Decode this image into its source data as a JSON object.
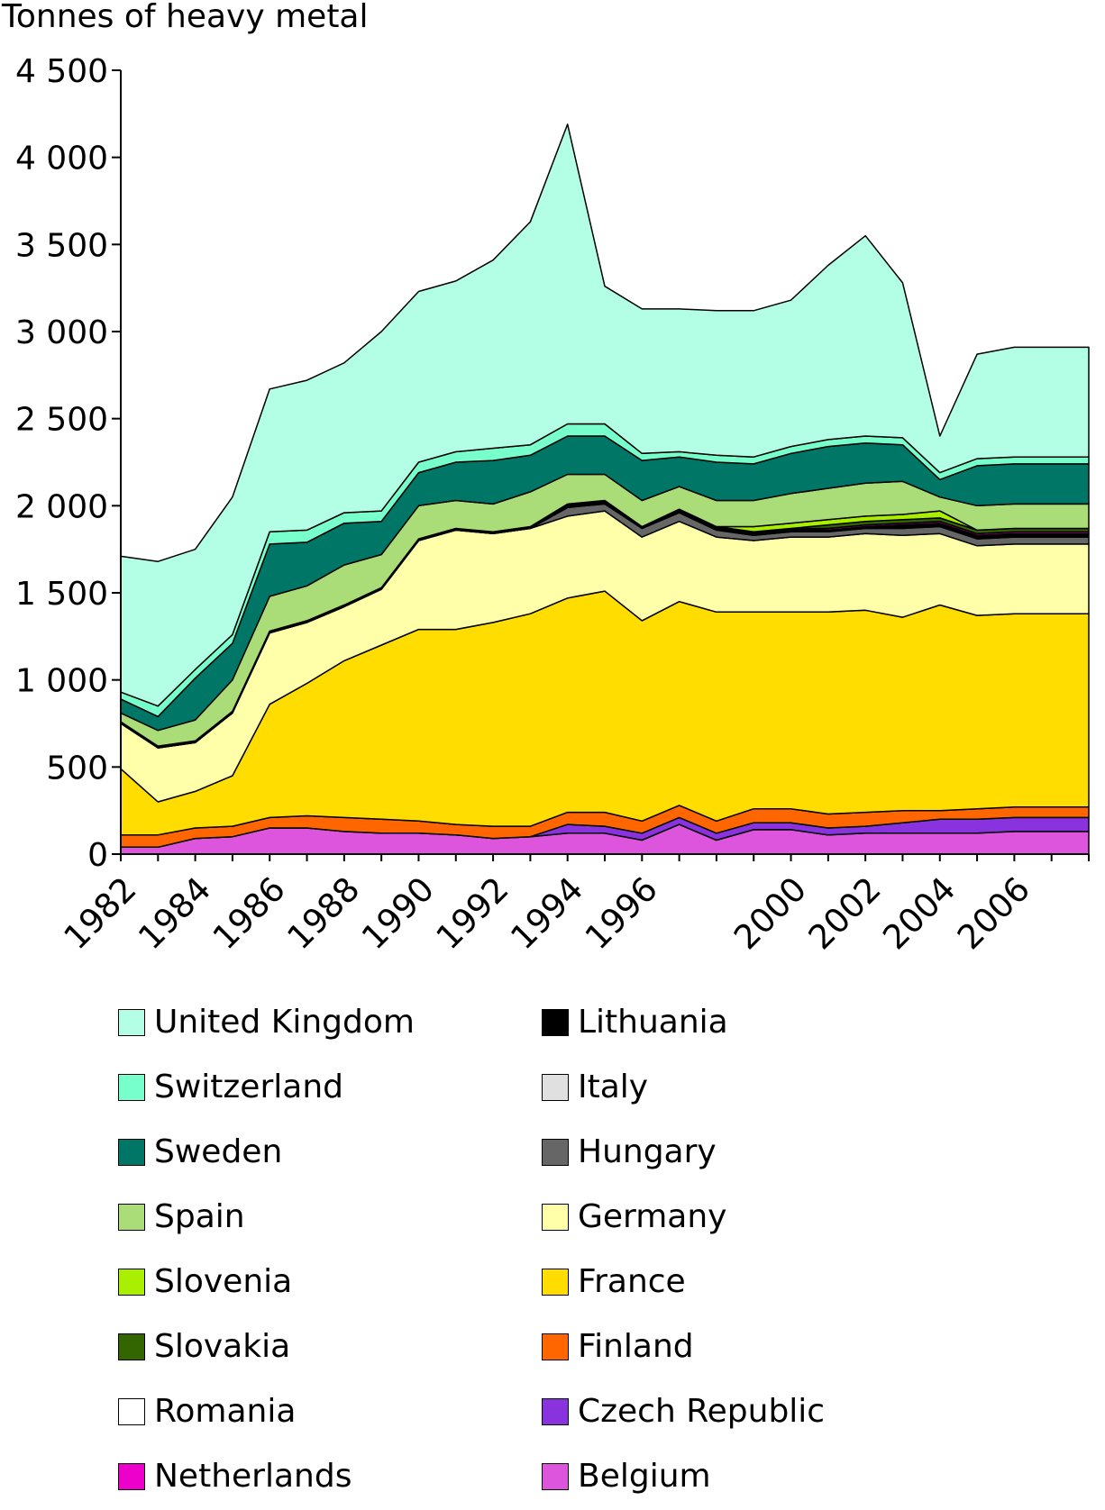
{
  "chart_data": {
    "type": "area",
    "stacked": true,
    "title": "",
    "ylabel": "Tonnes of heavy metal",
    "xlabel": "",
    "ylim": [
      0,
      4500
    ],
    "yticks": [
      {
        "value": 0,
        "label": "0"
      },
      {
        "value": 500,
        "label": "500"
      },
      {
        "value": 1000,
        "label": "1 000"
      },
      {
        "value": 1500,
        "label": "1 500"
      },
      {
        "value": 2000,
        "label": "2 000"
      },
      {
        "value": 2500,
        "label": "2 500"
      },
      {
        "value": 3000,
        "label": "3 000"
      },
      {
        "value": 3500,
        "label": "3 500"
      },
      {
        "value": 4000,
        "label": "4 000"
      },
      {
        "value": 4500,
        "label": "4 500"
      }
    ],
    "grid": false,
    "legend_position": "bottom",
    "categories": [
      "1982",
      "1983",
      "1984",
      "1985",
      "1986",
      "1987",
      "1988",
      "1989",
      "1990",
      "1991",
      "1992",
      "1993",
      "1994",
      "1995",
      "1996",
      "1997",
      "1998",
      "1999",
      "2000",
      "2001",
      "2002",
      "2003",
      "2004",
      "2005",
      "2006",
      "2007",
      "2008"
    ],
    "xtick_labels": [
      "1982",
      "1984",
      "1986",
      "1988",
      "1990",
      "1992",
      "1994",
      "1996",
      "2000",
      "2002",
      "2004",
      "2006"
    ],
    "series": [
      {
        "name": "Belgium",
        "color": "#dd55dd",
        "values": [
          40,
          40,
          90,
          100,
          150,
          150,
          130,
          120,
          120,
          110,
          90,
          100,
          120,
          120,
          80,
          170,
          80,
          140,
          140,
          110,
          120,
          120,
          120,
          120,
          130,
          130,
          130
        ]
      },
      {
        "name": "Czech Republic",
        "color": "#8833dd",
        "values": [
          0,
          0,
          0,
          0,
          0,
          0,
          0,
          0,
          0,
          0,
          0,
          0,
          50,
          40,
          40,
          40,
          40,
          40,
          40,
          40,
          40,
          60,
          80,
          80,
          80,
          80,
          80
        ]
      },
      {
        "name": "Finland",
        "color": "#ff6600",
        "values": [
          70,
          70,
          60,
          60,
          60,
          70,
          80,
          80,
          70,
          60,
          70,
          60,
          70,
          80,
          70,
          70,
          70,
          80,
          80,
          80,
          80,
          70,
          50,
          60,
          60,
          60,
          60
        ]
      },
      {
        "name": "France",
        "color": "#ffdd00",
        "values": [
          380,
          190,
          210,
          290,
          650,
          760,
          900,
          1000,
          1100,
          1120,
          1170,
          1220,
          1230,
          1270,
          1150,
          1170,
          1200,
          1130,
          1130,
          1160,
          1160,
          1110,
          1180,
          1110,
          1110,
          1110,
          1110
        ]
      },
      {
        "name": "Germany",
        "color": "#ffffaa",
        "values": [
          260,
          310,
          280,
          360,
          410,
          350,
          310,
          320,
          510,
          570,
          510,
          490,
          470,
          460,
          480,
          460,
          430,
          410,
          430,
          430,
          440,
          470,
          410,
          400,
          400,
          400,
          400
        ]
      },
      {
        "name": "Hungary",
        "color": "#666666",
        "values": [
          0,
          0,
          0,
          0,
          0,
          0,
          0,
          0,
          0,
          0,
          0,
          0,
          50,
          40,
          50,
          50,
          40,
          30,
          30,
          30,
          30,
          40,
          40,
          40,
          40,
          40,
          40
        ]
      },
      {
        "name": "Italy",
        "color": "#e0e0e0",
        "values": [
          0,
          0,
          0,
          0,
          0,
          0,
          0,
          0,
          0,
          0,
          0,
          0,
          0,
          0,
          0,
          0,
          0,
          0,
          0,
          0,
          0,
          0,
          0,
          0,
          0,
          0,
          0
        ]
      },
      {
        "name": "Lithuania",
        "color": "#000000",
        "values": [
          10,
          10,
          10,
          10,
          10,
          10,
          10,
          10,
          10,
          10,
          10,
          10,
          20,
          20,
          10,
          20,
          20,
          20,
          20,
          10,
          10,
          20,
          20,
          20,
          20,
          20,
          20
        ]
      },
      {
        "name": "Netherlands",
        "color": "#ee00cc",
        "values": [
          0,
          0,
          0,
          0,
          0,
          0,
          0,
          0,
          0,
          0,
          0,
          0,
          0,
          0,
          0,
          0,
          0,
          0,
          0,
          10,
          10,
          10,
          10,
          10,
          10,
          10,
          10
        ]
      },
      {
        "name": "Romania",
        "color": "#ffffff",
        "values": [
          0,
          0,
          0,
          0,
          0,
          0,
          0,
          0,
          0,
          0,
          0,
          0,
          0,
          0,
          0,
          0,
          0,
          0,
          0,
          0,
          0,
          0,
          0,
          0,
          0,
          0,
          0
        ]
      },
      {
        "name": "Slovakia",
        "color": "#336600",
        "values": [
          0,
          0,
          0,
          0,
          0,
          0,
          0,
          0,
          0,
          0,
          0,
          0,
          0,
          0,
          0,
          0,
          0,
          0,
          0,
          20,
          20,
          20,
          20,
          20,
          20,
          20,
          20
        ]
      },
      {
        "name": "Slovenia",
        "color": "#aaee00",
        "values": [
          0,
          0,
          0,
          0,
          0,
          0,
          0,
          0,
          0,
          0,
          0,
          0,
          0,
          0,
          0,
          0,
          0,
          30,
          30,
          30,
          30,
          30,
          40,
          0,
          0,
          0,
          0
        ]
      },
      {
        "name": "Spain",
        "color": "#aadd77",
        "values": [
          50,
          90,
          120,
          180,
          200,
          200,
          230,
          190,
          190,
          160,
          160,
          200,
          170,
          150,
          150,
          130,
          150,
          150,
          170,
          180,
          190,
          190,
          80,
          140,
          140,
          140,
          140
        ]
      },
      {
        "name": "Sweden",
        "color": "#007766",
        "values": [
          80,
          80,
          240,
          210,
          300,
          250,
          240,
          190,
          190,
          220,
          250,
          210,
          220,
          220,
          230,
          170,
          220,
          210,
          230,
          240,
          230,
          210,
          100,
          230,
          230,
          230,
          230
        ]
      },
      {
        "name": "Switzerland",
        "color": "#77ffcc",
        "values": [
          40,
          60,
          50,
          50,
          70,
          70,
          60,
          60,
          60,
          60,
          70,
          60,
          70,
          70,
          40,
          30,
          40,
          40,
          40,
          40,
          40,
          40,
          40,
          40,
          40,
          40,
          40
        ]
      },
      {
        "name": "United Kingdom",
        "color": "#b3ffe6",
        "values": [
          780,
          830,
          690,
          790,
          820,
          860,
          860,
          1030,
          980,
          980,
          1080,
          1280,
          1720,
          790,
          830,
          820,
          830,
          840,
          840,
          1000,
          1150,
          890,
          210,
          600,
          630,
          630,
          630
        ]
      }
    ]
  },
  "legend": {
    "left_column": [
      "United Kingdom",
      "Switzerland",
      "Sweden",
      "Spain",
      "Slovenia",
      "Slovakia",
      "Romania",
      "Netherlands"
    ],
    "right_column": [
      "Lithuania",
      "Italy",
      "Hungary",
      "Germany",
      "France",
      "Finland",
      "Czech Republic",
      "Belgium"
    ]
  }
}
